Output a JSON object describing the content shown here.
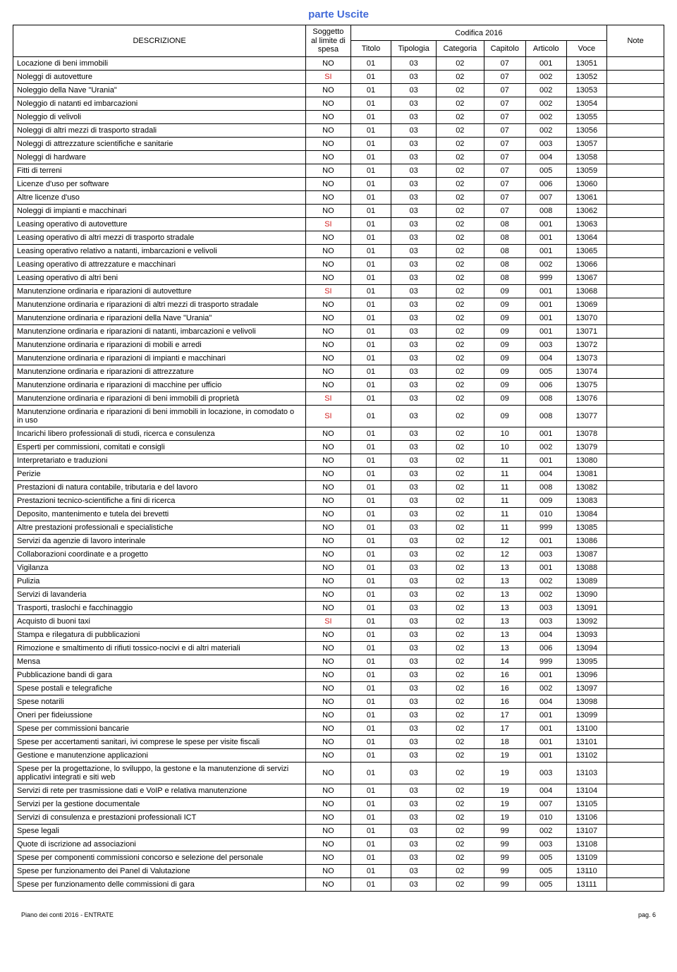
{
  "title": "parte Uscite",
  "header": {
    "descrizione": "DESCRIZIONE",
    "soggetto": "Soggetto al limite di spesa",
    "codifica": "Codifica 2016",
    "note": "Note",
    "subcols": [
      "Titolo",
      "Tipologia",
      "Categoria",
      "Capitolo",
      "Articolo",
      "Voce"
    ]
  },
  "rows": [
    {
      "d": "Locazione di beni immobili",
      "s": "NO",
      "c": [
        "01",
        "03",
        "02",
        "07",
        "001",
        "13051"
      ]
    },
    {
      "d": "Noleggi di autovetture",
      "s": "SI",
      "c": [
        "01",
        "03",
        "02",
        "07",
        "002",
        "13052"
      ]
    },
    {
      "d": "Noleggio della Nave \"Urania\"",
      "s": "NO",
      "c": [
        "01",
        "03",
        "02",
        "07",
        "002",
        "13053"
      ]
    },
    {
      "d": "Noleggio di natanti ed imbarcazioni",
      "s": "NO",
      "c": [
        "01",
        "03",
        "02",
        "07",
        "002",
        "13054"
      ]
    },
    {
      "d": "Noleggio di velivoli",
      "s": "NO",
      "c": [
        "01",
        "03",
        "02",
        "07",
        "002",
        "13055"
      ]
    },
    {
      "d": "Noleggi di altri mezzi di trasporto stradali",
      "s": "NO",
      "c": [
        "01",
        "03",
        "02",
        "07",
        "002",
        "13056"
      ]
    },
    {
      "d": "Noleggi di attrezzature scientifiche e sanitarie",
      "s": "NO",
      "c": [
        "01",
        "03",
        "02",
        "07",
        "003",
        "13057"
      ]
    },
    {
      "d": "Noleggi di hardware",
      "s": "NO",
      "c": [
        "01",
        "03",
        "02",
        "07",
        "004",
        "13058"
      ]
    },
    {
      "d": "Fitti di terreni",
      "s": "NO",
      "c": [
        "01",
        "03",
        "02",
        "07",
        "005",
        "13059"
      ]
    },
    {
      "d": "Licenze d'uso per software",
      "s": "NO",
      "c": [
        "01",
        "03",
        "02",
        "07",
        "006",
        "13060"
      ]
    },
    {
      "d": "Altre licenze d'uso",
      "s": "NO",
      "c": [
        "01",
        "03",
        "02",
        "07",
        "007",
        "13061"
      ]
    },
    {
      "d": "Noleggi di impianti e macchinari",
      "s": "NO",
      "c": [
        "01",
        "03",
        "02",
        "07",
        "008",
        "13062"
      ]
    },
    {
      "d": "Leasing operativo di autovetture",
      "s": "SI",
      "c": [
        "01",
        "03",
        "02",
        "08",
        "001",
        "13063"
      ]
    },
    {
      "d": "Leasing operativo di altri mezzi di trasporto stradale",
      "s": "NO",
      "c": [
        "01",
        "03",
        "02",
        "08",
        "001",
        "13064"
      ]
    },
    {
      "d": "Leasing operativo relativo a natanti, imbarcazioni e velivoli",
      "s": "NO",
      "c": [
        "01",
        "03",
        "02",
        "08",
        "001",
        "13065"
      ]
    },
    {
      "d": "Leasing operativo di attrezzature e macchinari",
      "s": "NO",
      "c": [
        "01",
        "03",
        "02",
        "08",
        "002",
        "13066"
      ]
    },
    {
      "d": "Leasing operativo di altri beni",
      "s": "NO",
      "c": [
        "01",
        "03",
        "02",
        "08",
        "999",
        "13067"
      ]
    },
    {
      "d": "Manutenzione ordinaria e riparazioni di autovetture",
      "s": "SI",
      "c": [
        "01",
        "03",
        "02",
        "09",
        "001",
        "13068"
      ]
    },
    {
      "d": "Manutenzione ordinaria e riparazioni di altri mezzi di trasporto stradale",
      "s": "NO",
      "c": [
        "01",
        "03",
        "02",
        "09",
        "001",
        "13069"
      ]
    },
    {
      "d": "Manutenzione ordinaria e riparazioni della Nave \"Urania\"",
      "s": "NO",
      "c": [
        "01",
        "03",
        "02",
        "09",
        "001",
        "13070"
      ]
    },
    {
      "d": "Manutenzione ordinaria e riparazioni di natanti, imbarcazioni e velivoli",
      "s": "NO",
      "c": [
        "01",
        "03",
        "02",
        "09",
        "001",
        "13071"
      ]
    },
    {
      "d": "Manutenzione ordinaria e riparazioni di mobili e arredi",
      "s": "NO",
      "c": [
        "01",
        "03",
        "02",
        "09",
        "003",
        "13072"
      ]
    },
    {
      "d": "Manutenzione ordinaria e riparazioni di impianti e macchinari",
      "s": "NO",
      "c": [
        "01",
        "03",
        "02",
        "09",
        "004",
        "13073"
      ]
    },
    {
      "d": "Manutenzione ordinaria e riparazioni di attrezzature",
      "s": "NO",
      "c": [
        "01",
        "03",
        "02",
        "09",
        "005",
        "13074"
      ]
    },
    {
      "d": "Manutenzione ordinaria e riparazioni di macchine per ufficio",
      "s": "NO",
      "c": [
        "01",
        "03",
        "02",
        "09",
        "006",
        "13075"
      ]
    },
    {
      "d": "Manutenzione ordinaria e riparazioni di beni immobili di proprietà",
      "s": "SI",
      "c": [
        "01",
        "03",
        "02",
        "09",
        "008",
        "13076"
      ]
    },
    {
      "d": "Manutenzione ordinaria e riparazioni di beni immobili in locazione, in comodato o in uso",
      "s": "SI",
      "c": [
        "01",
        "03",
        "02",
        "09",
        "008",
        "13077"
      ]
    },
    {
      "d": "Incarichi libero professionali di studi, ricerca e consulenza",
      "s": "NO",
      "c": [
        "01",
        "03",
        "02",
        "10",
        "001",
        "13078"
      ]
    },
    {
      "d": "Esperti per commissioni, comitati e consigli",
      "s": "NO",
      "c": [
        "01",
        "03",
        "02",
        "10",
        "002",
        "13079"
      ]
    },
    {
      "d": "Interpretariato e traduzioni",
      "s": "NO",
      "c": [
        "01",
        "03",
        "02",
        "11",
        "001",
        "13080"
      ]
    },
    {
      "d": "Perizie",
      "s": "NO",
      "c": [
        "01",
        "03",
        "02",
        "11",
        "004",
        "13081"
      ]
    },
    {
      "d": "Prestazioni di natura contabile, tributaria e del lavoro",
      "s": "NO",
      "c": [
        "01",
        "03",
        "02",
        "11",
        "008",
        "13082"
      ]
    },
    {
      "d": "Prestazioni tecnico-scientifiche a fini di ricerca",
      "s": "NO",
      "c": [
        "01",
        "03",
        "02",
        "11",
        "009",
        "13083"
      ]
    },
    {
      "d": "Deposito, mantenimento e tutela dei brevetti",
      "s": "NO",
      "c": [
        "01",
        "03",
        "02",
        "11",
        "010",
        "13084"
      ]
    },
    {
      "d": "Altre prestazioni professionali e specialistiche",
      "s": "NO",
      "c": [
        "01",
        "03",
        "02",
        "11",
        "999",
        "13085"
      ]
    },
    {
      "d": "Servizi da agenzie di lavoro interinale",
      "s": "NO",
      "c": [
        "01",
        "03",
        "02",
        "12",
        "001",
        "13086"
      ]
    },
    {
      "d": "Collaborazioni coordinate e a progetto",
      "s": "NO",
      "c": [
        "01",
        "03",
        "02",
        "12",
        "003",
        "13087"
      ]
    },
    {
      "d": "Vigilanza",
      "s": "NO",
      "c": [
        "01",
        "03",
        "02",
        "13",
        "001",
        "13088"
      ]
    },
    {
      "d": "Pulizia",
      "s": "NO",
      "c": [
        "01",
        "03",
        "02",
        "13",
        "002",
        "13089"
      ]
    },
    {
      "d": "Servizi di lavanderia",
      "s": "NO",
      "c": [
        "01",
        "03",
        "02",
        "13",
        "002",
        "13090"
      ]
    },
    {
      "d": "Trasporti, traslochi e facchinaggio",
      "s": "NO",
      "c": [
        "01",
        "03",
        "02",
        "13",
        "003",
        "13091"
      ]
    },
    {
      "d": "Acquisto di buoni taxi",
      "s": "SI",
      "c": [
        "01",
        "03",
        "02",
        "13",
        "003",
        "13092"
      ]
    },
    {
      "d": "Stampa e rilegatura di pubblicazioni",
      "s": "NO",
      "c": [
        "01",
        "03",
        "02",
        "13",
        "004",
        "13093"
      ]
    },
    {
      "d": "Rimozione e smaltimento di rifiuti tossico-nocivi e di altri materiali",
      "s": "NO",
      "c": [
        "01",
        "03",
        "02",
        "13",
        "006",
        "13094"
      ]
    },
    {
      "d": "Mensa",
      "s": "NO",
      "c": [
        "01",
        "03",
        "02",
        "14",
        "999",
        "13095"
      ]
    },
    {
      "d": "Pubblicazione bandi di gara",
      "s": "NO",
      "c": [
        "01",
        "03",
        "02",
        "16",
        "001",
        "13096"
      ]
    },
    {
      "d": "Spese postali e telegrafiche",
      "s": "NO",
      "c": [
        "01",
        "03",
        "02",
        "16",
        "002",
        "13097"
      ]
    },
    {
      "d": "Spese notarili",
      "s": "NO",
      "c": [
        "01",
        "03",
        "02",
        "16",
        "004",
        "13098"
      ]
    },
    {
      "d": "Oneri per fideiussione",
      "s": "NO",
      "c": [
        "01",
        "03",
        "02",
        "17",
        "001",
        "13099"
      ]
    },
    {
      "d": "Spese per commissioni bancarie",
      "s": "NO",
      "c": [
        "01",
        "03",
        "02",
        "17",
        "001",
        "13100"
      ]
    },
    {
      "d": "Spese per accertamenti sanitari, ivi comprese le spese per visite fiscali",
      "s": "NO",
      "c": [
        "01",
        "03",
        "02",
        "18",
        "001",
        "13101"
      ]
    },
    {
      "d": "Gestione e manutenzione applicazioni",
      "s": "NO",
      "c": [
        "01",
        "03",
        "02",
        "19",
        "001",
        "13102"
      ]
    },
    {
      "d": "Spese per la progettazione, lo sviluppo, la gestone e la manutenzione di servizi applicativi integrati e siti web",
      "s": "NO",
      "c": [
        "01",
        "03",
        "02",
        "19",
        "003",
        "13103"
      ]
    },
    {
      "d": "Servizi di rete per trasmissione dati e VoIP e relativa manutenzione",
      "s": "NO",
      "c": [
        "01",
        "03",
        "02",
        "19",
        "004",
        "13104"
      ]
    },
    {
      "d": "Servizi per la gestione documentale",
      "s": "NO",
      "c": [
        "01",
        "03",
        "02",
        "19",
        "007",
        "13105"
      ]
    },
    {
      "d": "Servizi di consulenza e prestazioni professionali ICT",
      "s": "NO",
      "c": [
        "01",
        "03",
        "02",
        "19",
        "010",
        "13106"
      ]
    },
    {
      "d": "Spese legali",
      "s": "NO",
      "c": [
        "01",
        "03",
        "02",
        "99",
        "002",
        "13107"
      ]
    },
    {
      "d": "Quote di iscrizione ad associazioni",
      "s": "NO",
      "c": [
        "01",
        "03",
        "02",
        "99",
        "003",
        "13108"
      ]
    },
    {
      "d": "Spese per componenti commissioni concorso e selezione del personale",
      "s": "NO",
      "c": [
        "01",
        "03",
        "02",
        "99",
        "005",
        "13109"
      ]
    },
    {
      "d": "Spese per funzionamento dei Panel di Valutazione",
      "s": "NO",
      "c": [
        "01",
        "03",
        "02",
        "99",
        "005",
        "13110"
      ]
    },
    {
      "d": "Spese per funzionamento delle commissioni di gara",
      "s": "NO",
      "c": [
        "01",
        "03",
        "02",
        "99",
        "005",
        "13111"
      ]
    }
  ],
  "footer": {
    "left": "Piano dei conti 2016 - ENTRATE",
    "right": "pag. 6"
  }
}
